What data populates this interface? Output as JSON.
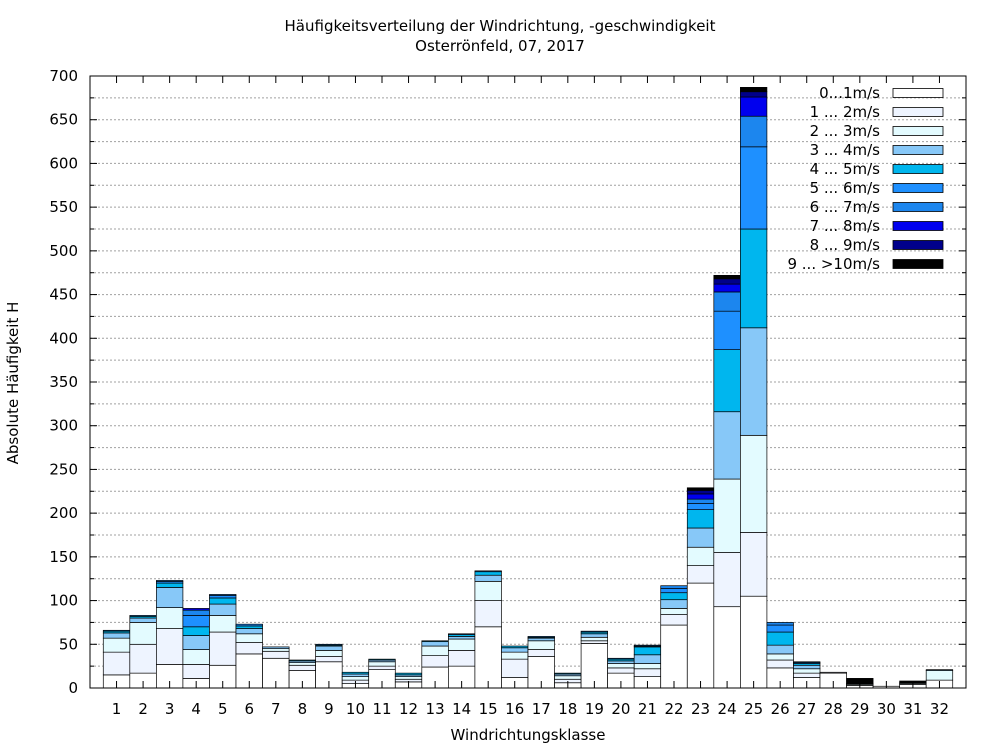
{
  "chart_data": {
    "type": "bar",
    "stacked": true,
    "title": "Häufigkeitsverteilung der Windrichtung, -geschwindigkeit",
    "subtitle": "Osterrönfeld, 07, 2017",
    "xlabel": "Windrichtungsklasse",
    "ylabel": "Absolute Häufigkeit H",
    "ylim": [
      0,
      700
    ],
    "y_ticks": [
      0,
      50,
      100,
      150,
      200,
      250,
      300,
      350,
      400,
      450,
      500,
      550,
      600,
      650,
      700
    ],
    "grid": true,
    "legend_position": "top-right",
    "categories": [
      "1",
      "2",
      "3",
      "4",
      "5",
      "6",
      "7",
      "8",
      "9",
      "10",
      "11",
      "12",
      "13",
      "14",
      "15",
      "16",
      "17",
      "18",
      "19",
      "20",
      "21",
      "22",
      "23",
      "24",
      "25",
      "26",
      "27",
      "28",
      "29",
      "30",
      "31",
      "32"
    ],
    "series": [
      {
        "name": "0...1m/s",
        "color": "#ffffff",
        "values": [
          15,
          17,
          27,
          11,
          26,
          39,
          34,
          20,
          30,
          5,
          21,
          7,
          24,
          25,
          70,
          12,
          36,
          6,
          51,
          17,
          13,
          72,
          120,
          93,
          105,
          23,
          12,
          17,
          3,
          2,
          4,
          9
        ]
      },
      {
        "name": "1 ... 2m/s",
        "color": "#eef4ff",
        "values": [
          26,
          33,
          41,
          16,
          38,
          13,
          8,
          6,
          6,
          4,
          4,
          3,
          13,
          18,
          30,
          21,
          8,
          4,
          3,
          6,
          9,
          12,
          20,
          62,
          73,
          9,
          5,
          1,
          1,
          0,
          1,
          0
        ]
      },
      {
        "name": "2 ... 3m/s",
        "color": "#e3fbff",
        "values": [
          16,
          25,
          24,
          17,
          19,
          10,
          3,
          3,
          7,
          4,
          5,
          3,
          11,
          13,
          22,
          8,
          10,
          4,
          4,
          5,
          6,
          7,
          21,
          84,
          111,
          7,
          5,
          0,
          1,
          0,
          1,
          11
        ]
      },
      {
        "name": "3 ... 4m/s",
        "color": "#87c8f8",
        "values": [
          6,
          5,
          23,
          16,
          13,
          6,
          2,
          2,
          5,
          3,
          2,
          2,
          5,
          3,
          7,
          5,
          3,
          2,
          4,
          3,
          10,
          10,
          22,
          77,
          123,
          10,
          4,
          0,
          0,
          0,
          0,
          1
        ]
      },
      {
        "name": "4 ... 5m/s",
        "color": "#00b6ee",
        "values": [
          2,
          2,
          5,
          10,
          7,
          3,
          0,
          1,
          1,
          2,
          1,
          2,
          1,
          2,
          4,
          2,
          1,
          1,
          2,
          2,
          9,
          8,
          21,
          71,
          113,
          15,
          2,
          0,
          0,
          0,
          0,
          0
        ]
      },
      {
        "name": "5 ... 6m/s",
        "color": "#1e90ff",
        "values": [
          1,
          1,
          2,
          13,
          3,
          2,
          0,
          0,
          1,
          0,
          0,
          0,
          0,
          1,
          1,
          0,
          1,
          0,
          1,
          1,
          1,
          5,
          7,
          44,
          94,
          8,
          1,
          0,
          0,
          0,
          0,
          0
        ]
      },
      {
        "name": "6 ... 7m/s",
        "color": "#1c86ee",
        "values": [
          0,
          0,
          1,
          6,
          1,
          0,
          0,
          0,
          0,
          0,
          0,
          0,
          0,
          0,
          0,
          0,
          0,
          0,
          0,
          0,
          1,
          3,
          5,
          22,
          35,
          3,
          1,
          0,
          0,
          0,
          0,
          0
        ]
      },
      {
        "name": "7 ... 8m/s",
        "color": "#0000ee",
        "values": [
          0,
          0,
          0,
          2,
          0,
          0,
          0,
          0,
          0,
          0,
          0,
          0,
          0,
          0,
          0,
          0,
          0,
          0,
          0,
          0,
          0,
          0,
          6,
          9,
          22,
          0,
          0,
          0,
          0,
          0,
          0,
          0
        ]
      },
      {
        "name": "8 ... 9m/s",
        "color": "#00008b",
        "values": [
          0,
          0,
          0,
          0,
          0,
          0,
          0,
          0,
          0,
          0,
          0,
          0,
          0,
          0,
          0,
          0,
          0,
          0,
          0,
          0,
          0,
          0,
          4,
          6,
          6,
          0,
          0,
          0,
          0,
          0,
          0,
          0
        ]
      },
      {
        "name": "9 ... >10m/s",
        "color": "#000000",
        "values": [
          0,
          0,
          0,
          0,
          0,
          0,
          0,
          0,
          0,
          0,
          0,
          0,
          0,
          0,
          0,
          0,
          0,
          0,
          0,
          0,
          0,
          0,
          3,
          4,
          5,
          0,
          0,
          0,
          6,
          0,
          2,
          0
        ]
      }
    ]
  }
}
